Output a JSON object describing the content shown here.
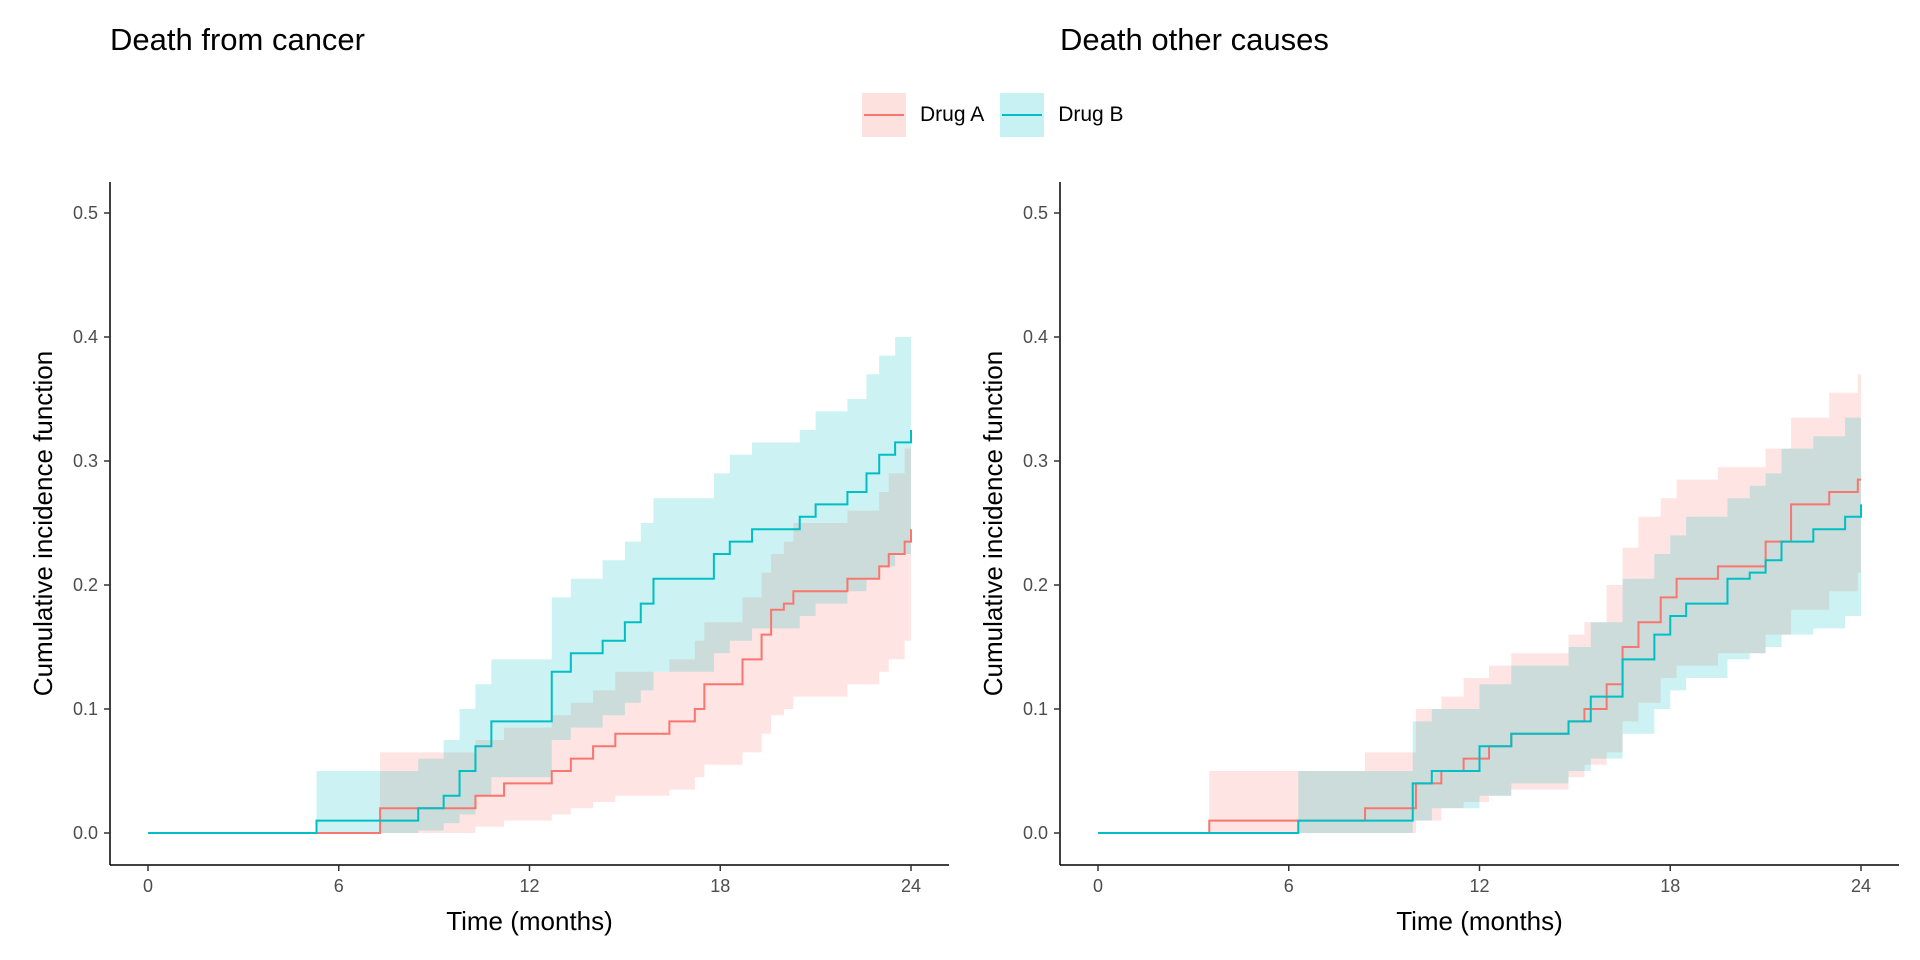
{
  "colors": {
    "drug_a": "#F8766D",
    "drug_b": "#00BFC4",
    "axis": "#000000",
    "tick_text": "#4d4d4d"
  },
  "legend": {
    "items": [
      {
        "label": "Drug A",
        "color": "#F8766D"
      },
      {
        "label": "Drug B",
        "color": "#00BFC4"
      }
    ]
  },
  "chart_data": [
    {
      "type": "line",
      "title": "Death from cancer",
      "xlabel": "Time (months)",
      "ylabel": "Cumulative incidence function",
      "xlim": [
        0,
        24
      ],
      "ylim": [
        0,
        0.5
      ],
      "xticks": [
        0,
        6,
        12,
        18,
        24
      ],
      "yticks": [
        0.0,
        0.1,
        0.2,
        0.3,
        0.4,
        0.5
      ],
      "ytick_labels": [
        "0.0",
        "0.1",
        "0.2",
        "0.3",
        "0.4",
        "0.5"
      ],
      "grid": false,
      "legend_position": "top",
      "series": [
        {
          "name": "Drug A",
          "step_x": [
            0,
            7.3,
            10.3,
            11.2,
            12.7,
            13.3,
            14.0,
            14.7,
            16.4,
            17.2,
            17.5,
            18.7,
            19.3,
            19.6,
            20.0,
            20.3,
            22.0,
            23.0,
            23.3,
            23.8,
            24.0
          ],
          "step_y": [
            0.0,
            0.02,
            0.03,
            0.04,
            0.05,
            0.06,
            0.07,
            0.08,
            0.09,
            0.1,
            0.12,
            0.14,
            0.16,
            0.18,
            0.185,
            0.195,
            0.205,
            0.215,
            0.225,
            0.235,
            0.245
          ],
          "ci_lower": [
            0.0,
            0.0,
            0.005,
            0.01,
            0.015,
            0.02,
            0.025,
            0.03,
            0.035,
            0.045,
            0.055,
            0.065,
            0.08,
            0.095,
            0.1,
            0.11,
            0.12,
            0.13,
            0.14,
            0.155,
            0.17
          ],
          "ci_upper": [
            0.0,
            0.065,
            0.075,
            0.085,
            0.095,
            0.105,
            0.115,
            0.13,
            0.14,
            0.155,
            0.17,
            0.19,
            0.21,
            0.225,
            0.235,
            0.25,
            0.26,
            0.275,
            0.29,
            0.31,
            0.335
          ]
        },
        {
          "name": "Drug B",
          "step_x": [
            0,
            5.3,
            8.5,
            9.3,
            9.8,
            10.3,
            10.8,
            12.7,
            13.3,
            14.3,
            15.0,
            15.5,
            15.9,
            17.8,
            18.3,
            19.0,
            20.5,
            21.0,
            22.0,
            22.6,
            23.0,
            23.5,
            24.0
          ],
          "step_y": [
            0.0,
            0.01,
            0.02,
            0.03,
            0.05,
            0.07,
            0.09,
            0.13,
            0.145,
            0.155,
            0.17,
            0.185,
            0.205,
            0.225,
            0.235,
            0.245,
            0.255,
            0.265,
            0.275,
            0.29,
            0.305,
            0.315,
            0.325
          ],
          "ci_lower": [
            0.0,
            0.0,
            0.002,
            0.008,
            0.015,
            0.03,
            0.045,
            0.075,
            0.085,
            0.095,
            0.105,
            0.115,
            0.13,
            0.145,
            0.155,
            0.165,
            0.175,
            0.185,
            0.195,
            0.205,
            0.215,
            0.225,
            0.24
          ],
          "ci_upper": [
            0.0,
            0.05,
            0.06,
            0.075,
            0.1,
            0.12,
            0.14,
            0.19,
            0.205,
            0.22,
            0.235,
            0.25,
            0.27,
            0.29,
            0.305,
            0.315,
            0.325,
            0.34,
            0.35,
            0.37,
            0.385,
            0.4,
            0.415
          ]
        }
      ]
    },
    {
      "type": "line",
      "title": "Death other causes",
      "xlabel": "Time (months)",
      "ylabel": "Cumulative incidence function",
      "xlim": [
        0,
        24
      ],
      "ylim": [
        0,
        0.5
      ],
      "xticks": [
        0,
        6,
        12,
        18,
        24
      ],
      "yticks": [
        0.0,
        0.1,
        0.2,
        0.3,
        0.4,
        0.5
      ],
      "ytick_labels": [
        "0.0",
        "0.1",
        "0.2",
        "0.3",
        "0.4",
        "0.5"
      ],
      "grid": false,
      "legend_position": "top",
      "series": [
        {
          "name": "Drug A",
          "step_x": [
            0,
            3.5,
            8.4,
            10.0,
            10.8,
            11.5,
            12.3,
            13.0,
            14.8,
            15.3,
            16.0,
            16.5,
            17.0,
            17.7,
            18.2,
            19.5,
            21.0,
            21.8,
            23.0,
            23.9,
            24.0
          ],
          "step_y": [
            0.0,
            0.01,
            0.02,
            0.04,
            0.05,
            0.06,
            0.07,
            0.08,
            0.09,
            0.1,
            0.12,
            0.15,
            0.17,
            0.19,
            0.205,
            0.215,
            0.235,
            0.265,
            0.275,
            0.285,
            0.285
          ],
          "ci_lower": [
            0.0,
            0.0,
            0.0,
            0.01,
            0.02,
            0.025,
            0.03,
            0.035,
            0.045,
            0.055,
            0.065,
            0.09,
            0.105,
            0.125,
            0.135,
            0.145,
            0.16,
            0.18,
            0.195,
            0.21,
            0.21
          ],
          "ci_upper": [
            0.0,
            0.05,
            0.065,
            0.1,
            0.11,
            0.125,
            0.135,
            0.145,
            0.16,
            0.17,
            0.2,
            0.23,
            0.255,
            0.27,
            0.285,
            0.295,
            0.31,
            0.335,
            0.355,
            0.37,
            0.38
          ]
        },
        {
          "name": "Drug B",
          "step_x": [
            0,
            6.3,
            9.9,
            10.5,
            12.0,
            13.0,
            14.8,
            15.5,
            16.5,
            17.5,
            18.0,
            18.5,
            19.8,
            20.5,
            21.0,
            21.5,
            22.5,
            23.5,
            24.0
          ],
          "step_y": [
            0.0,
            0.01,
            0.04,
            0.05,
            0.07,
            0.08,
            0.09,
            0.11,
            0.14,
            0.16,
            0.175,
            0.185,
            0.205,
            0.21,
            0.22,
            0.235,
            0.245,
            0.255,
            0.265
          ],
          "ci_lower": [
            0.0,
            0.0,
            0.01,
            0.02,
            0.03,
            0.04,
            0.05,
            0.06,
            0.08,
            0.1,
            0.115,
            0.125,
            0.14,
            0.145,
            0.15,
            0.16,
            0.165,
            0.175,
            0.19
          ],
          "ci_upper": [
            0.0,
            0.05,
            0.09,
            0.1,
            0.12,
            0.135,
            0.15,
            0.17,
            0.205,
            0.225,
            0.24,
            0.255,
            0.27,
            0.28,
            0.29,
            0.31,
            0.32,
            0.335,
            0.35
          ]
        }
      ]
    }
  ]
}
